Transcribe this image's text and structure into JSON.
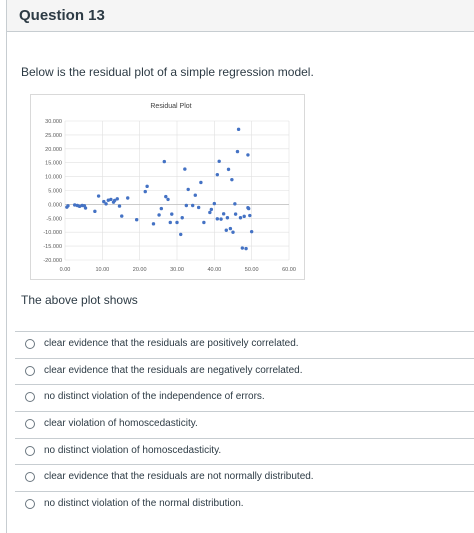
{
  "question": {
    "title": "Question 13",
    "prompt": "Below is the residual plot of a simple regression model.",
    "followup": "The above plot shows"
  },
  "chart_data": {
    "type": "scatter",
    "title": "Residual Plot",
    "xlim": [
      0,
      60
    ],
    "ylim": [
      -20,
      30
    ],
    "x_ticks": [
      "0.00",
      "10.00",
      "20.00",
      "30.00",
      "40.00",
      "50.00",
      "60.00"
    ],
    "y_ticks": [
      "30.000",
      "25.000",
      "20.000",
      "15.000",
      "10.000",
      "5.000",
      "0.000",
      "-5.000",
      "-10.000",
      "-15.000",
      "-20.000"
    ],
    "grid": true,
    "color": "#4472c4",
    "points": [
      [
        0.5,
        -1.0
      ],
      [
        0.8,
        -0.5
      ],
      [
        2.6,
        -0.2
      ],
      [
        3.3,
        -0.4
      ],
      [
        3.9,
        -0.7
      ],
      [
        4.6,
        -0.4
      ],
      [
        5.2,
        -0.5
      ],
      [
        5.5,
        -1.3
      ],
      [
        8.0,
        -2.5
      ],
      [
        9.0,
        3.0
      ],
      [
        10.4,
        1.0
      ],
      [
        11.0,
        0.2
      ],
      [
        11.6,
        1.5
      ],
      [
        12.3,
        1.8
      ],
      [
        13.0,
        0.8
      ],
      [
        13.3,
        1.4
      ],
      [
        14.0,
        2.0
      ],
      [
        14.6,
        -0.6
      ],
      [
        15.2,
        -4.2
      ],
      [
        16.8,
        2.3
      ],
      [
        19.2,
        -5.5
      ],
      [
        21.5,
        4.6
      ],
      [
        22.0,
        6.5
      ],
      [
        23.7,
        -7.0
      ],
      [
        25.2,
        -3.8
      ],
      [
        25.8,
        -1.5
      ],
      [
        26.6,
        15.4
      ],
      [
        27.0,
        2.8
      ],
      [
        27.6,
        1.8
      ],
      [
        28.2,
        -6.5
      ],
      [
        28.6,
        -3.5
      ],
      [
        30.0,
        -6.5
      ],
      [
        31.0,
        -10.8
      ],
      [
        31.4,
        -4.8
      ],
      [
        32.1,
        12.7
      ],
      [
        32.5,
        -0.4
      ],
      [
        33.0,
        5.4
      ],
      [
        34.2,
        -0.4
      ],
      [
        34.9,
        3.3
      ],
      [
        35.8,
        -1.1
      ],
      [
        36.4,
        7.9
      ],
      [
        37.2,
        -6.5
      ],
      [
        38.8,
        -2.9
      ],
      [
        39.2,
        -1.8
      ],
      [
        40.0,
        0.3
      ],
      [
        40.8,
        10.7
      ],
      [
        40.8,
        -5.2
      ],
      [
        41.3,
        15.5
      ],
      [
        41.8,
        -5.3
      ],
      [
        42.5,
        -3.4
      ],
      [
        43.2,
        -9.3
      ],
      [
        43.5,
        -4.8
      ],
      [
        43.8,
        12.6
      ],
      [
        44.3,
        -8.7
      ],
      [
        44.7,
        8.9
      ],
      [
        45.0,
        -10.0
      ],
      [
        45.5,
        0.2
      ],
      [
        45.7,
        -3.5
      ],
      [
        46.2,
        19.0
      ],
      [
        46.5,
        27.0
      ],
      [
        47.0,
        -4.8
      ],
      [
        47.5,
        -15.7
      ],
      [
        48.0,
        -4.3
      ],
      [
        48.5,
        -15.9
      ],
      [
        49.0,
        17.8
      ],
      [
        49.0,
        -1.2
      ],
      [
        49.2,
        -1.5
      ],
      [
        49.5,
        -4.0
      ],
      [
        50.0,
        -9.8
      ]
    ]
  },
  "answers": [
    {
      "label": "clear evidence that the residuals are positively correlated."
    },
    {
      "label": "clear evidence that the residuals are negatively correlated."
    },
    {
      "label": "no distinct violation of the independence of errors."
    },
    {
      "label": "clear violation of homoscedasticity."
    },
    {
      "label": "no distinct violation of homoscedasticity."
    },
    {
      "label": "clear evidence that the residuals are not normally distributed."
    },
    {
      "label": "no distinct violation of the normal distribution."
    }
  ]
}
